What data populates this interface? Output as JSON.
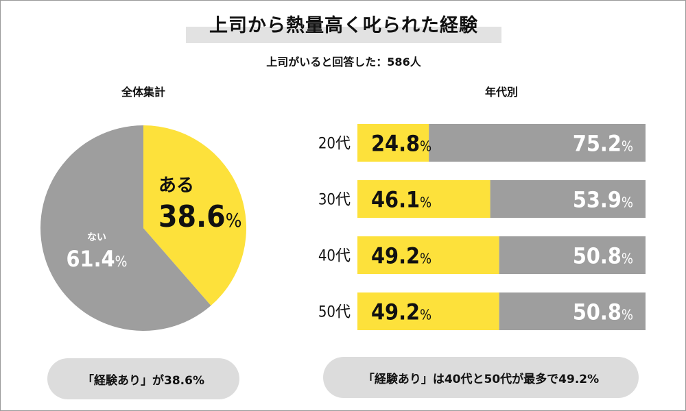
{
  "title": "上司から熱量高く叱られた経験",
  "subtitle": "上司がいると回答した：586人",
  "colors": {
    "yes": "#fde13b",
    "no": "#9e9e9e"
  },
  "chart_data": [
    {
      "type": "pie",
      "title": "全体集計",
      "slices": [
        {
          "label": "ある",
          "value": 38.6,
          "display": "38.6"
        },
        {
          "label": "ない",
          "value": 61.4,
          "display": "61.4"
        }
      ],
      "unit": "%"
    },
    {
      "type": "bar",
      "stacked": true,
      "orientation": "horizontal",
      "title": "年代別",
      "categories": [
        "20代",
        "30代",
        "40代",
        "50代"
      ],
      "series": [
        {
          "name": "ある",
          "values": [
            24.8,
            46.1,
            49.2,
            49.2
          ],
          "display": [
            "24.8",
            "46.1",
            "49.2",
            "49.2"
          ]
        },
        {
          "name": "ない",
          "values": [
            75.2,
            53.9,
            50.8,
            50.8
          ],
          "display": [
            "75.2",
            "53.9",
            "50.8",
            "50.8"
          ]
        }
      ],
      "unit": "%",
      "xlim": [
        0,
        100
      ]
    }
  ],
  "summary": {
    "left": "「経験あり」が38.6%",
    "right": "「経験あり」は40代と50代が最多で49.2%"
  }
}
